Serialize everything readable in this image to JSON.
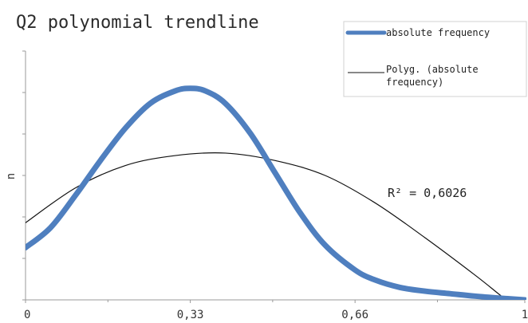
{
  "chart_data": {
    "type": "line",
    "title": "Q2 polynomial trendline",
    "xlabel": "",
    "ylabel": "n",
    "xlim": [
      0,
      1
    ],
    "ylim": [
      0,
      1
    ],
    "x_ticks": [
      "0",
      "0,33",
      "0,66",
      "1"
    ],
    "x_tick_values": [
      0,
      0.33,
      0.66,
      1
    ],
    "grid": false,
    "legend_position": "top-right",
    "series": [
      {
        "name": "absolute frequency",
        "color": "#4f7fbf",
        "style": "smooth-thick",
        "x": [
          0,
          0.05,
          0.1,
          0.15,
          0.2,
          0.25,
          0.3,
          0.33,
          0.36,
          0.4,
          0.45,
          0.5,
          0.55,
          0.6,
          0.66,
          0.7,
          0.75,
          0.8,
          0.85,
          0.9,
          0.95,
          1
        ],
        "y": [
          0.21,
          0.29,
          0.42,
          0.56,
          0.69,
          0.79,
          0.84,
          0.85,
          0.84,
          0.79,
          0.67,
          0.51,
          0.35,
          0.22,
          0.12,
          0.08,
          0.05,
          0.035,
          0.025,
          0.015,
          0.007,
          0.0
        ]
      },
      {
        "name": "Polyg. (absolute frequency)",
        "legend_lines": [
          "Polyg. (absolute",
          "frequency)"
        ],
        "color": "#111111",
        "style": "thin",
        "x": [
          0,
          0.1,
          0.2,
          0.3,
          0.4,
          0.5,
          0.6,
          0.7,
          0.8,
          0.9,
          0.95,
          1
        ],
        "y": [
          0.31,
          0.45,
          0.54,
          0.58,
          0.59,
          0.56,
          0.5,
          0.39,
          0.25,
          0.1,
          0.02,
          -0.06
        ]
      }
    ],
    "annotation": "R² = 0,6026"
  }
}
